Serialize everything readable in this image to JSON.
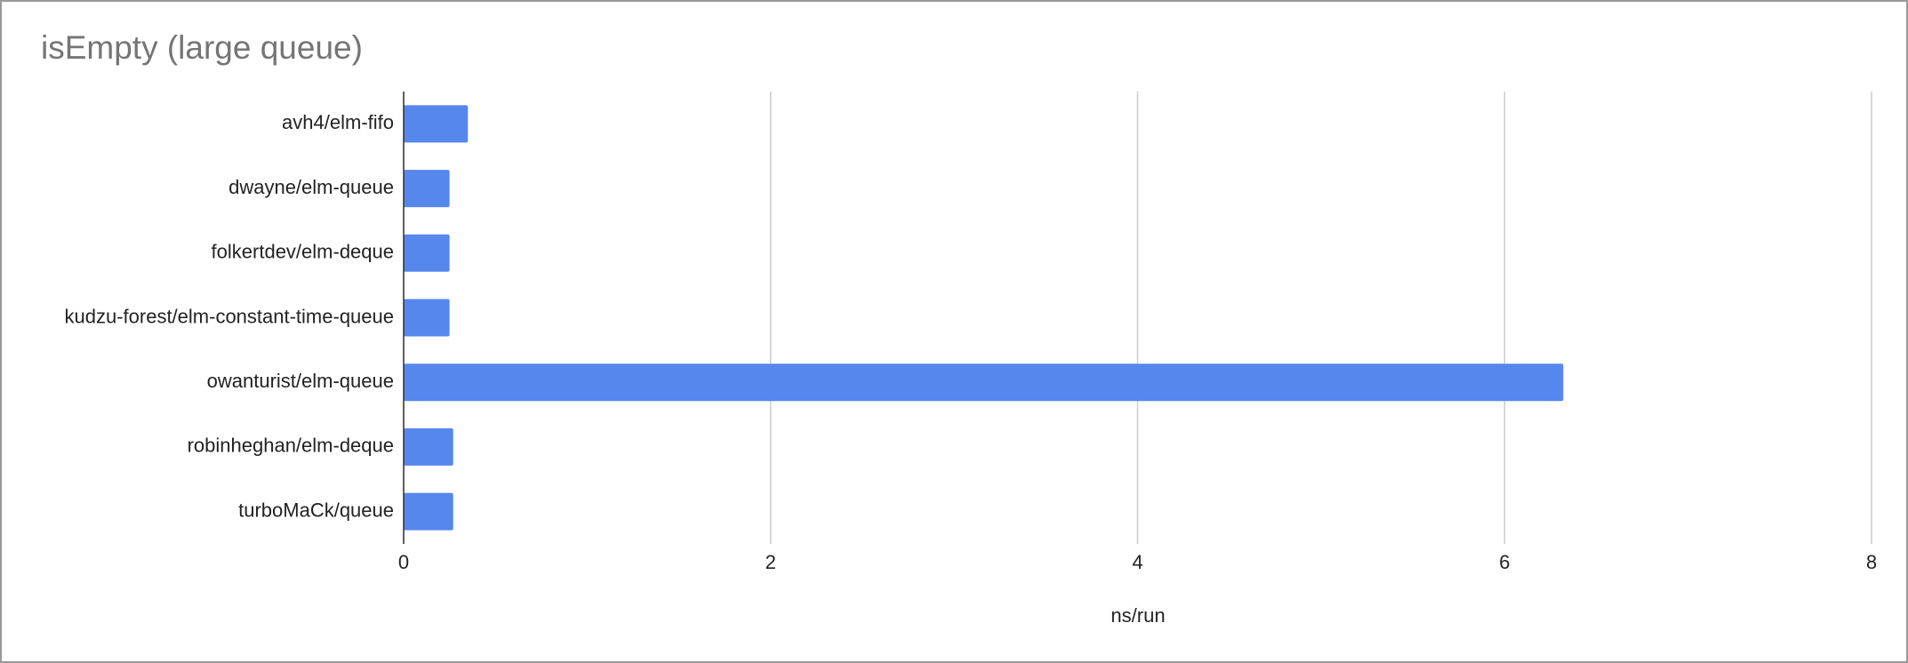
{
  "chart_data": {
    "type": "bar",
    "orientation": "horizontal",
    "title": "isEmpty (large queue)",
    "x_label": "ns/run",
    "categories": [
      "avh4/elm-fifo",
      "dwayne/elm-queue",
      "folkertdev/elm-deque",
      "kudzu-forest/elm-constant-time-queue",
      "owanturist/elm-queue",
      "robinheghan/elm-deque",
      "turboMaCk/queue"
    ],
    "values": [
      0.35,
      0.25,
      0.25,
      0.25,
      6.32,
      0.27,
      0.27
    ],
    "color": "#5687ed",
    "xlim": [
      0,
      8
    ],
    "xticks": [
      0,
      2,
      4,
      6,
      8
    ],
    "grid": true
  }
}
